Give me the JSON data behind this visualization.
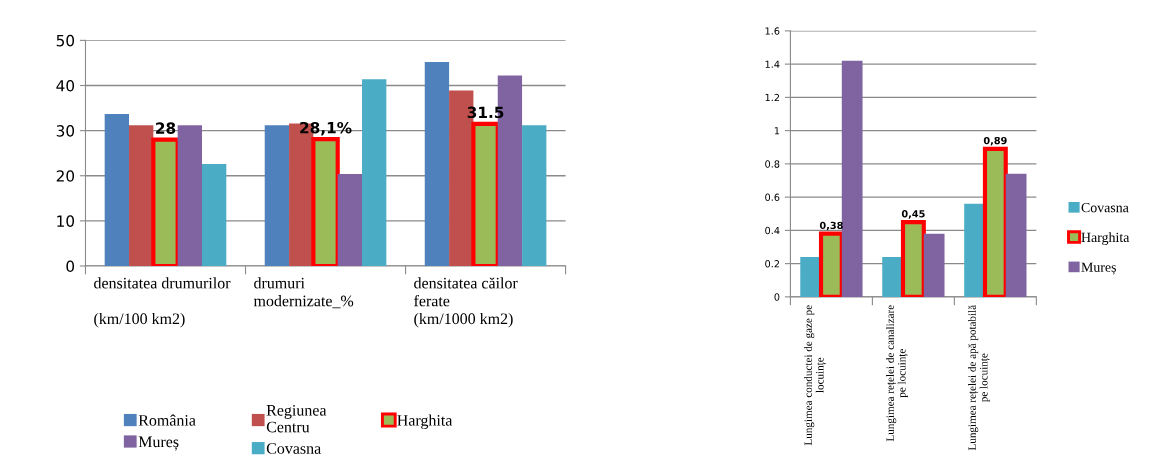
{
  "chart_data": [
    {
      "type": "bar",
      "categories": [
        "densitatea drumurilor\n\n(km/100 km2)",
        "drumuri\nmodernizate_%",
        "densitatea căilor\nferate\n(km/1000 km2)"
      ],
      "series": [
        {
          "name": "România",
          "color": "#4f81bd",
          "values": [
            33.7,
            31.2,
            45.2
          ]
        },
        {
          "name": "Regiunea\nCentru",
          "color": "#c0504d",
          "values": [
            31.2,
            31.6,
            38.9
          ]
        },
        {
          "name": "Harghita",
          "color": "#9bbb59",
          "values": [
            28,
            28.1,
            31.5
          ],
          "value_labels": [
            "28",
            "28,1%",
            "31.5"
          ]
        },
        {
          "name": "Mureș",
          "color": "#8064a2",
          "values": [
            31.2,
            20.4,
            42.2
          ]
        },
        {
          "name": "Covasna",
          "color": "#4bacc6",
          "values": [
            22.6,
            41.4,
            31.2
          ]
        }
      ],
      "ylim": [
        0,
        50
      ],
      "yticks": [
        0,
        10,
        20,
        30,
        40,
        50
      ],
      "grid": "y",
      "legend": "bottom"
    },
    {
      "type": "bar",
      "categories": [
        "Lungimea conductei de gaze pe\nlocuințe",
        "Lungimea rețelei de canalizare\npe locuințe",
        "Lungimea rețelei de apă potabilă\npe locuințe"
      ],
      "series": [
        {
          "name": "Covasna",
          "color": "#4bacc6",
          "values": [
            0.24,
            0.24,
            0.56
          ]
        },
        {
          "name": "Harghita",
          "color": "#9bbb59",
          "values": [
            0.38,
            0.45,
            0.89
          ],
          "value_labels": [
            "0,38",
            "0,45",
            "0,89"
          ]
        },
        {
          "name": "Mureș",
          "color": "#8064a2",
          "values": [
            1.42,
            0.38,
            0.74
          ]
        }
      ],
      "ylim": [
        0,
        1.6
      ],
      "yticks": [
        0,
        {
          "value": 0.2,
          "label": "0.2"
        },
        {
          "value": 0.4,
          "label": "0.4"
        },
        {
          "value": 0.6,
          "label": "0.6"
        },
        {
          "value": 0.8,
          "label": "0.8"
        },
        1,
        {
          "value": 1.2,
          "label": "1.2"
        },
        {
          "value": 1.4,
          "label": "1.4"
        },
        {
          "value": 1.6,
          "label": "1.6"
        }
      ],
      "grid": "y",
      "legend": "right"
    }
  ]
}
